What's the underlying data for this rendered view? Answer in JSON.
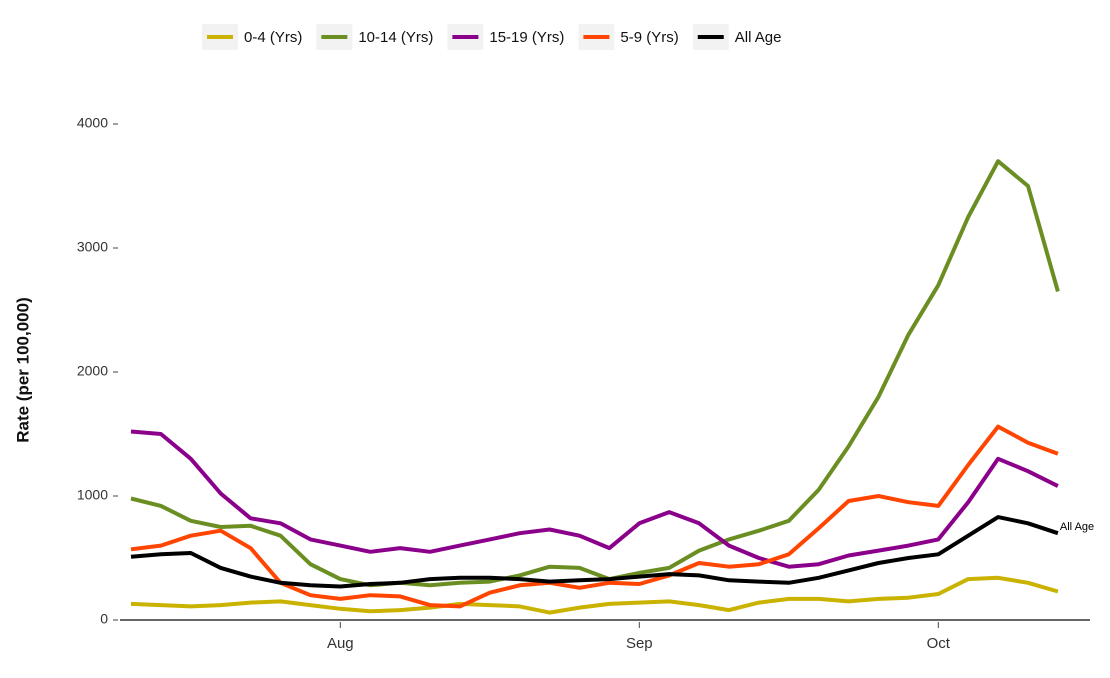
{
  "chart_data": {
    "type": "line",
    "y_label": "Rate (per 100,000)",
    "annotation": "All Age",
    "categories": [
      null,
      null,
      null,
      null,
      null,
      null,
      null,
      "Aug",
      null,
      null,
      null,
      null,
      null,
      null,
      null,
      null,
      null,
      "Sep",
      null,
      null,
      null,
      null,
      null,
      null,
      null,
      null,
      null,
      "Oct",
      null,
      null,
      null,
      null
    ],
    "series": [
      {
        "name": "0-4 (Yrs)",
        "color": "#c9b200",
        "values": [
          130,
          120,
          110,
          120,
          140,
          150,
          120,
          90,
          70,
          80,
          100,
          130,
          120,
          110,
          60,
          100,
          130,
          140,
          150,
          120,
          80,
          140,
          170,
          170,
          150,
          170,
          180,
          210,
          330,
          340,
          300,
          230
        ]
      },
      {
        "name": "10-14 (Yrs)",
        "color": "#6b8e23",
        "values": [
          980,
          920,
          800,
          750,
          760,
          680,
          450,
          330,
          280,
          300,
          280,
          300,
          310,
          360,
          430,
          420,
          330,
          380,
          420,
          560,
          650,
          720,
          800,
          1050,
          1400,
          1800,
          2300,
          2700,
          3250,
          3700,
          3500,
          2650
        ]
      },
      {
        "name": "15-19 (Yrs)",
        "color": "#8b008b",
        "values": [
          1520,
          1500,
          1300,
          1020,
          820,
          780,
          650,
          600,
          550,
          580,
          550,
          600,
          650,
          700,
          730,
          680,
          580,
          780,
          870,
          780,
          600,
          500,
          430,
          450,
          520,
          560,
          600,
          650,
          950,
          1300,
          1200,
          1080
        ]
      },
      {
        "name": "5-9 (Yrs)",
        "color": "#ff4500",
        "values": [
          570,
          600,
          680,
          720,
          580,
          300,
          200,
          170,
          200,
          190,
          120,
          110,
          220,
          280,
          300,
          260,
          300,
          290,
          360,
          460,
          430,
          450,
          530,
          740,
          960,
          1000,
          950,
          920,
          1250,
          1560,
          1430,
          1340
        ]
      },
      {
        "name": "All Age",
        "color": "#000000",
        "values": [
          510,
          530,
          540,
          420,
          350,
          300,
          280,
          270,
          290,
          300,
          330,
          340,
          340,
          330,
          310,
          320,
          330,
          350,
          370,
          360,
          320,
          310,
          300,
          340,
          400,
          460,
          500,
          530,
          680,
          830,
          780,
          700
        ]
      }
    ],
    "ylim": [
      0,
      4230
    ],
    "yticks": [
      0,
      1000,
      2000,
      3000,
      4000
    ],
    "grid": false,
    "legend": "top"
  }
}
